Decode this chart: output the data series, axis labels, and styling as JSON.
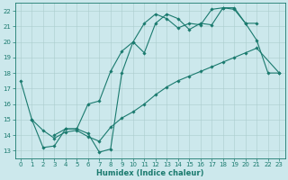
{
  "line1_x": [
    0,
    1,
    2,
    3,
    4,
    5,
    6,
    7,
    8,
    9,
    10,
    11,
    12,
    13,
    14,
    15,
    16,
    17,
    18,
    19,
    20,
    21,
    22,
    23
  ],
  "line1_y": [
    17.5,
    15.0,
    13.2,
    13.3,
    14.4,
    14.4,
    14.1,
    12.9,
    13.1,
    18.0,
    20.0,
    19.3,
    21.2,
    21.8,
    21.5,
    20.8,
    21.2,
    21.1,
    22.2,
    22.2,
    21.2,
    20.1,
    18.0,
    18.0
  ],
  "line2_x": [
    1,
    2,
    3,
    4,
    5,
    6,
    7,
    8,
    9,
    10,
    11,
    12,
    13,
    14,
    15,
    16,
    17,
    18,
    19,
    20,
    21,
    23
  ],
  "line2_y": [
    15.0,
    14.3,
    13.8,
    14.2,
    14.3,
    13.9,
    13.6,
    14.5,
    15.1,
    15.5,
    16.0,
    16.6,
    17.1,
    17.5,
    17.8,
    18.1,
    18.4,
    18.7,
    19.0,
    19.3,
    19.6,
    18.0
  ],
  "line3_x": [
    3,
    4,
    5,
    6,
    7,
    8,
    9,
    10,
    11,
    12,
    13,
    14,
    15,
    16,
    17,
    18,
    19,
    20,
    21
  ],
  "line3_y": [
    14.0,
    14.4,
    14.4,
    16.0,
    16.2,
    18.1,
    19.4,
    20.0,
    21.2,
    21.8,
    21.5,
    20.9,
    21.2,
    21.1,
    22.1,
    22.2,
    22.1,
    21.2,
    21.2
  ],
  "color": "#1a7a6e",
  "bg_color": "#cce8ec",
  "grid_color": "#aacccc",
  "xlabel": "Humidex (Indice chaleur)",
  "ylim": [
    12.5,
    22.5
  ],
  "xlim": [
    -0.5,
    23.5
  ],
  "yticks": [
    13,
    14,
    15,
    16,
    17,
    18,
    19,
    20,
    21,
    22
  ],
  "xticks": [
    0,
    1,
    2,
    3,
    4,
    5,
    6,
    7,
    8,
    9,
    10,
    11,
    12,
    13,
    14,
    15,
    16,
    17,
    18,
    19,
    20,
    21,
    22,
    23
  ]
}
